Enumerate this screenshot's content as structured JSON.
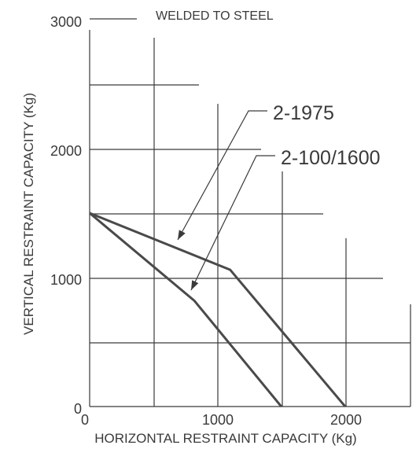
{
  "chart_data": {
    "type": "line",
    "title": "WELDED TO STEEL",
    "xlabel": "HORIZONTAL RESTRAINT CAPACITY (Kg)",
    "ylabel": "VERTICAL RESTRAINT CAPACITY (Kg)",
    "xlim": [
      0,
      2500
    ],
    "ylim": [
      0,
      3000
    ],
    "x_tick_labels": [
      "0",
      "1000",
      "2000"
    ],
    "x_tick_values": [
      0,
      1000,
      2000
    ],
    "y_tick_labels": [
      "0",
      "1000",
      "2000",
      "3000"
    ],
    "y_tick_values": [
      0,
      1000,
      2000,
      3000
    ],
    "grid": true,
    "series": [
      {
        "name": "2-1975",
        "color": "#4a4a4a",
        "x": [
          0,
          1100,
          2000
        ],
        "y": [
          1500,
          1060,
          0
        ]
      },
      {
        "name": "2-100/1600",
        "color": "#4a4a4a",
        "x": [
          0,
          820,
          1500
        ],
        "y": [
          1500,
          820,
          0
        ]
      }
    ]
  }
}
